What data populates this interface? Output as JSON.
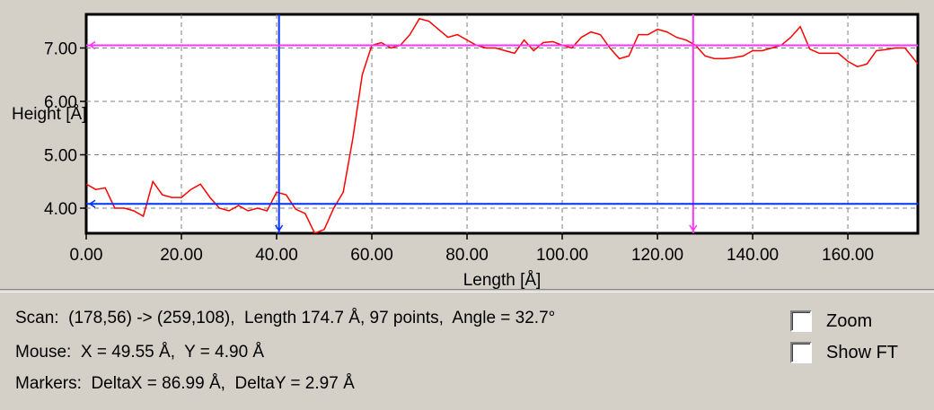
{
  "chart_data": {
    "type": "line",
    "xlabel": "Length [Å]",
    "ylabel": "Height [Å]",
    "xlim": [
      0,
      174.7
    ],
    "ylim": [
      3.53,
      7.63
    ],
    "x_ticks": [
      "0.00",
      "20.00",
      "40.00",
      "60.00",
      "80.00",
      "100.00",
      "120.00",
      "140.00",
      "160.00"
    ],
    "x_tick_values": [
      0,
      20,
      40,
      60,
      80,
      100,
      120,
      140,
      160
    ],
    "y_ticks": [
      "4.00",
      "5.00",
      "6.00",
      "7.00"
    ],
    "y_tick_values": [
      4,
      5,
      6,
      7
    ],
    "grid": true,
    "series": [
      {
        "color": "#ff0000",
        "x": [
          0,
          2,
          4,
          6,
          8,
          10,
          12,
          14,
          16,
          18,
          20,
          22,
          24,
          26,
          28,
          30,
          32,
          34,
          36,
          38,
          40,
          42,
          44,
          46,
          48,
          50,
          52,
          54,
          56,
          58,
          60,
          62,
          64,
          66,
          68,
          70,
          72,
          74,
          76,
          78,
          80,
          82,
          84,
          86,
          88,
          90,
          92,
          94,
          96,
          98,
          100,
          102,
          104,
          106,
          108,
          110,
          112,
          114,
          116,
          118,
          120,
          122,
          124,
          126,
          128,
          130,
          132,
          134,
          136,
          138,
          140,
          142,
          144,
          146,
          148,
          150,
          152,
          154,
          156,
          158,
          160,
          162,
          164,
          166,
          168,
          170,
          172,
          174.7
        ],
        "y": [
          4.45,
          4.35,
          4.38,
          4.0,
          4.0,
          3.95,
          3.85,
          4.5,
          4.25,
          4.2,
          4.2,
          4.35,
          4.45,
          4.2,
          4.0,
          3.95,
          4.05,
          3.95,
          4.0,
          3.95,
          4.3,
          4.25,
          3.98,
          3.9,
          3.53,
          3.6,
          4.0,
          4.3,
          5.3,
          6.5,
          7.05,
          7.1,
          7.0,
          7.05,
          7.25,
          7.55,
          7.5,
          7.35,
          7.2,
          7.25,
          7.15,
          7.05,
          7.0,
          7.0,
          6.95,
          6.9,
          7.15,
          6.95,
          7.1,
          7.12,
          7.05,
          7.0,
          7.2,
          7.3,
          7.25,
          7.0,
          6.8,
          6.85,
          7.25,
          7.25,
          7.35,
          7.3,
          7.2,
          7.15,
          7.05,
          6.85,
          6.8,
          6.8,
          6.82,
          6.85,
          6.95,
          6.95,
          7.0,
          7.05,
          7.2,
          7.4,
          6.98,
          6.9,
          6.9,
          6.9,
          6.75,
          6.65,
          6.7,
          6.95,
          6.97,
          7.0,
          7.0,
          6.7
        ]
      }
    ],
    "markers": {
      "vertical": [
        {
          "x": 40.5,
          "color": "#0033ff"
        },
        {
          "x": 127.5,
          "color": "#ff33ff"
        }
      ],
      "horizontal": [
        {
          "y": 4.08,
          "color": "#0033ff"
        },
        {
          "y": 7.05,
          "color": "#ff33ff"
        }
      ]
    }
  },
  "info": {
    "scan": "Scan:  (178,56) -> (259,108),  Length 174.7 Å, 97 points,  Angle = 32.7°",
    "mouse": "Mouse:  X = 49.55 Å,  Y = 4.90 Å",
    "markers": "Markers:  DeltaX = 86.99 Å,  DeltaY = 2.97 Å"
  },
  "checkboxes": {
    "zoom_label": "Zoom",
    "zoom_checked": false,
    "show_ft_label": "Show FT",
    "show_ft_checked": false
  }
}
